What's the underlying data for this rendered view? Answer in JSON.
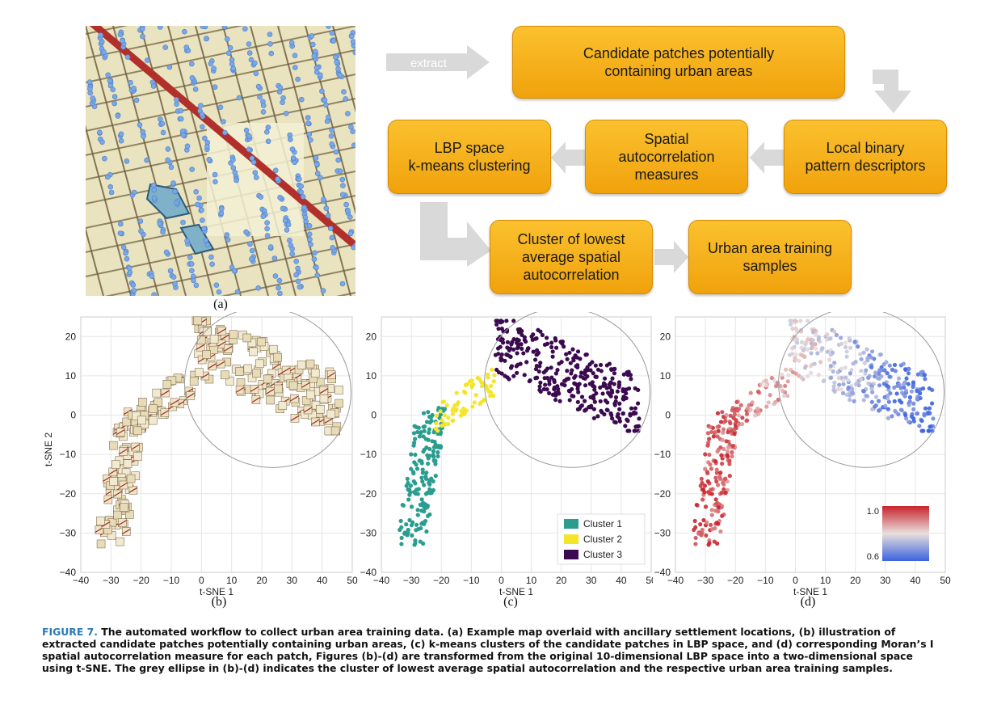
{
  "labels": {
    "a": "(a)",
    "b": "(b)",
    "c": "(c)",
    "d": "(d)"
  },
  "workflow": {
    "extract_label": "extract",
    "boxes": {
      "candidate": "Candidate patches potentially\ncontaining urban areas",
      "lbp": "Local binary\npattern descriptors",
      "spatial": "Spatial\nautocorrelation\nmeasures",
      "kmeans": "LBP space\nk-means clustering",
      "cluster_lowest": "Cluster of lowest\naverage spatial\nautocorrelation",
      "training": "Urban area training\nsamples"
    },
    "box_color": "#f5b21c",
    "arrow_color": "#d9d9d9"
  },
  "plots": {
    "xlabel": "t-SNE 1",
    "ylabel": "t-SNE 2",
    "xticks": [
      "−40",
      "−30",
      "−20",
      "−10",
      "0",
      "10",
      "20",
      "30",
      "40",
      "50"
    ],
    "yticks": [
      "20",
      "10",
      "0",
      "−10",
      "−20",
      "−30",
      "−40"
    ],
    "legend_c": [
      "Cluster 1",
      "Cluster 2",
      "Cluster 3"
    ],
    "colorbar_title": "Moran's I",
    "colorbar_max": "1.0",
    "colorbar_min": "0.6"
  },
  "chart_data": [
    {
      "type": "scatter",
      "xlabel": "t-SNE 1",
      "ylabel": "t-SNE 2",
      "xlim": [
        -40,
        50
      ],
      "ylim": [
        -40,
        25
      ],
      "grid": true,
      "note_points": "image patches"
    },
    {
      "type": "scatter",
      "xlabel": "t-SNE 1",
      "xlim": [
        -40,
        50
      ],
      "ylim": [
        -40,
        25
      ],
      "grid": true,
      "legend": "bottom-right",
      "series": [
        {
          "name": "Cluster 1",
          "color": "#2a9d8f"
        },
        {
          "name": "Cluster 2",
          "color": "#f5e52a"
        },
        {
          "name": "Cluster 3",
          "color": "#3b0a4f"
        }
      ]
    },
    {
      "type": "scatter",
      "xlabel": "t-SNE 1",
      "xlim": [
        -40,
        50
      ],
      "ylim": [
        -40,
        25
      ],
      "grid": true,
      "colorbar": {
        "title": "Moran's I",
        "min": 0.6,
        "max": 1.0,
        "colormap": "coolwarm"
      }
    }
  ],
  "caption": {
    "figure_label": "FIGURE 7.",
    "text": " The automated workflow to collect urban area training data. (a) Example map overlaid with ancillary settlement locations, (b) illustration of extracted candidate patches potentially containing urban areas, (c)  k-means clusters of the candidate patches in LBP space, and (d) corresponding Moran’s I spatial autocorrelation measure for each patch, Figures (b)-(d) are transformed from the original 10-dimensional LBP space into a two-dimensional space using t-SNE. The grey ellipse in (b)-(d) indicates the cluster of lowest average spatial autocorrelation and the respective urban area training samples."
  }
}
